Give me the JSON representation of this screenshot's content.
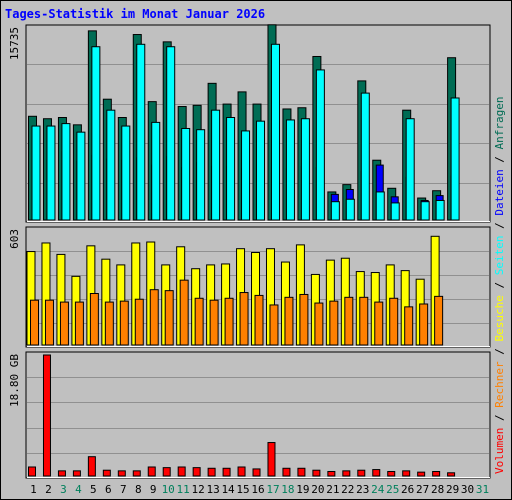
{
  "chart_data": {
    "title": "Tages-Statistik im Monat Januar 2026",
    "colors": {
      "frame_bg": "#c0c0c0",
      "title": "#0000ff",
      "anfragen": "#006c54",
      "dateien": "#0000ff",
      "seiten": "#00ffff",
      "besuche": "#ffff00",
      "rechner": "#ff8000",
      "volumen": "#ff0000",
      "weekend_day": "#00805c",
      "weekday": "#000000"
    },
    "x": [
      "1",
      "2",
      "3",
      "4",
      "5",
      "6",
      "7",
      "8",
      "9",
      "10",
      "11",
      "12",
      "13",
      "14",
      "15",
      "16",
      "17",
      "18",
      "19",
      "20",
      "21",
      "22",
      "23",
      "24",
      "25",
      "26",
      "27",
      "28",
      "29",
      "30",
      "31"
    ],
    "weekend_days": [
      "3",
      "4",
      "10",
      "11",
      "17",
      "18",
      "24",
      "25",
      "31"
    ],
    "panels": [
      {
        "id": "hits",
        "type": "bar",
        "max_label": "15735",
        "ylim": [
          0,
          15735
        ],
        "series": [
          {
            "name": "Anfragen",
            "color": "#006c54",
            "values": [
              8500,
              8300,
              8400,
              7800,
              15500,
              9900,
              8400,
              15200,
              9700,
              14600,
              9300,
              9400,
              11200,
              9500,
              10500,
              9500,
              16000,
              9100,
              9200,
              13400,
              2300,
              2900,
              11400,
              4900,
              2600,
              9000,
              1800,
              2400,
              13300,
              null,
              null
            ]
          },
          {
            "name": "Dateien",
            "color": "#0000ff",
            "values": [
              4700,
              4900,
              5600,
              4800,
              5300,
              5000,
              4900,
              5100,
              4500,
              5200,
              4300,
              4700,
              4400,
              4400,
              4200,
              4500,
              4300,
              4200,
              4400,
              4300,
              2100,
              2500,
              4000,
              4500,
              1900,
              3500,
              1600,
              2000,
              3600,
              null,
              null
            ]
          },
          {
            "name": "Seiten",
            "color": "#00ffff",
            "values": [
              7700,
              7700,
              7900,
              7200,
              14200,
              9000,
              7700,
              14400,
              8000,
              14200,
              7500,
              7400,
              9000,
              8400,
              7300,
              8100,
              14400,
              8200,
              8300,
              12300,
              1500,
              1700,
              10400,
              2300,
              1400,
              8300,
              1500,
              1600,
              10000,
              null,
              null
            ]
          }
        ]
      },
      {
        "id": "visits",
        "type": "bar",
        "max_label": "603",
        "ylim": [
          0,
          603
        ],
        "series": [
          {
            "name": "Besuche",
            "color": "#ffff00",
            "values": [
              490,
              535,
              475,
              360,
              520,
              450,
              420,
              535,
              540,
              420,
              515,
              400,
              420,
              425,
              505,
              485,
              505,
              435,
              525,
              370,
              445,
              455,
              385,
              380,
              420,
              390,
              345,
              570,
              null,
              null,
              null
            ]
          },
          {
            "name": "Rechner",
            "color": "#ff8000",
            "values": [
              235,
              235,
              225,
              225,
              270,
              225,
              230,
              240,
              290,
              285,
              340,
              245,
              235,
              245,
              275,
              260,
              210,
              250,
              265,
              220,
              230,
              250,
              250,
              225,
              245,
              200,
              215,
              255,
              null,
              null,
              null
            ]
          }
        ]
      },
      {
        "id": "volume",
        "type": "bar",
        "max_label": "18.80 GB",
        "ylim": [
          0,
          18.8
        ],
        "series": [
          {
            "name": "Volumen",
            "color": "#ff0000",
            "values": [
              1.4,
              18.8,
              0.8,
              0.8,
              3.0,
              0.9,
              0.8,
              0.8,
              1.4,
              1.3,
              1.4,
              1.3,
              1.2,
              1.2,
              1.4,
              1.1,
              5.2,
              1.2,
              1.2,
              0.9,
              0.7,
              0.8,
              0.9,
              1.0,
              0.7,
              0.8,
              0.6,
              0.7,
              0.5,
              null,
              null
            ]
          }
        ]
      }
    ],
    "right_legend": [
      {
        "text": "Volumen",
        "color": "#ff0000"
      },
      {
        "text": " / ",
        "color": "#000000"
      },
      {
        "text": "Rechner",
        "color": "#ff8000"
      },
      {
        "text": " / ",
        "color": "#000000"
      },
      {
        "text": "Besuche",
        "color": "#ffff00"
      },
      {
        "text": " / ",
        "color": "#000000"
      },
      {
        "text": "Seiten",
        "color": "#00ffff"
      },
      {
        "text": " / ",
        "color": "#000000"
      },
      {
        "text": "Dateien",
        "color": "#0000ff"
      },
      {
        "text": " / ",
        "color": "#000000"
      },
      {
        "text": "Anfragen",
        "color": "#006c54"
      }
    ]
  }
}
